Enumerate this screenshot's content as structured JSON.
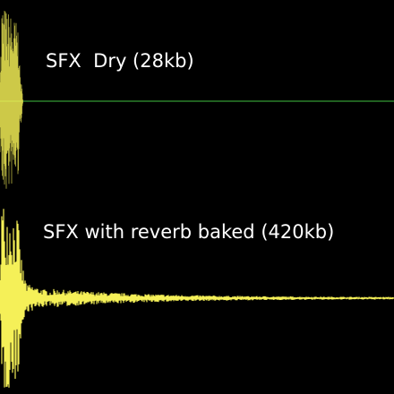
{
  "tracks": [
    {
      "label": "SFX  Dry (28kb)",
      "waveform_color": "#f5f058",
      "centerline_color": "#3fbf3f"
    },
    {
      "label": "SFX with reverb baked (420kb)",
      "waveform_color": "#f5f058",
      "centerline_color": "#f5f058"
    }
  ],
  "background_color": "#000000"
}
